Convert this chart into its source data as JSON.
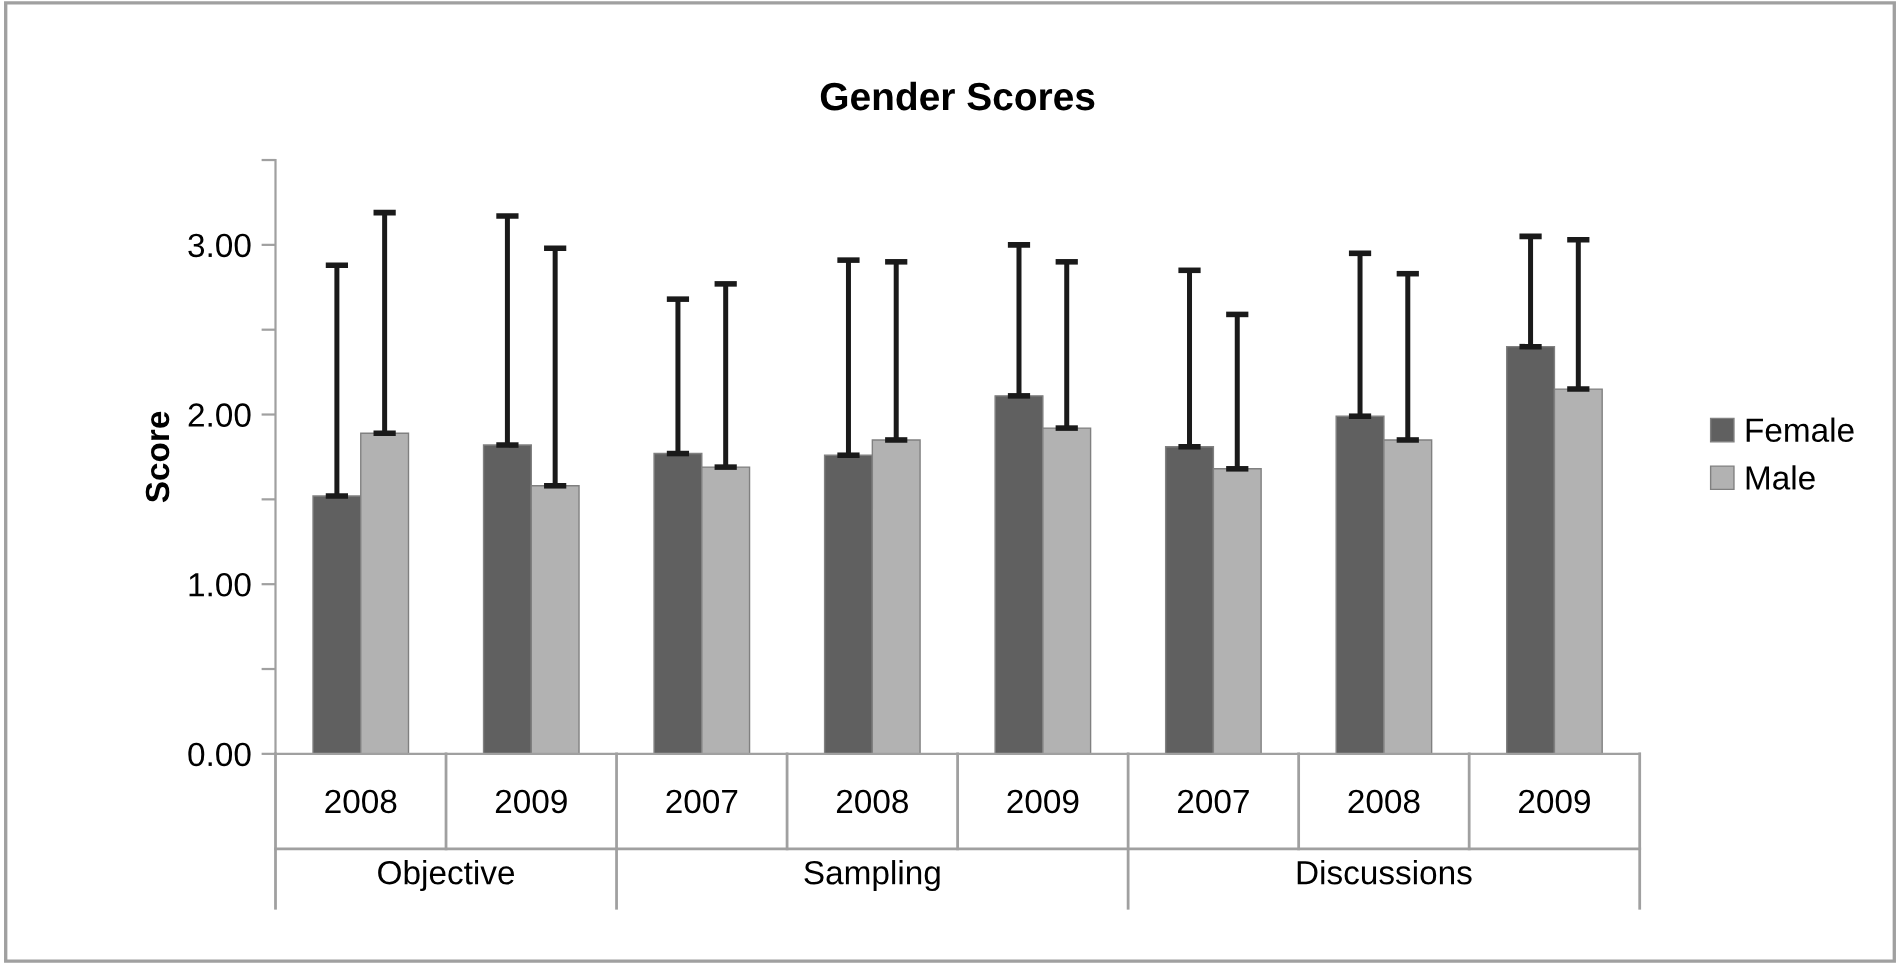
{
  "chart_data": {
    "type": "bar",
    "title": "Gender Scores",
    "ylabel": "Score",
    "categories": [
      "2008",
      "2009",
      "2007",
      "2008",
      "2009",
      "2007",
      "2008",
      "2009"
    ],
    "annotations": [
      "Objective",
      "Sampling",
      "Discussions"
    ],
    "series": [
      {
        "name": "Female",
        "color": "#606060",
        "values": [
          1.52,
          1.82,
          1.77,
          1.76,
          2.11,
          1.81,
          1.99,
          2.4
        ],
        "errors": [
          [
            1.52,
            2.88
          ],
          [
            1.82,
            3.17
          ],
          [
            1.77,
            2.68
          ],
          [
            1.76,
            2.91
          ],
          [
            2.11,
            3.0
          ],
          [
            1.81,
            2.85
          ],
          [
            1.99,
            2.95
          ],
          [
            2.4,
            3.05
          ]
        ]
      },
      {
        "name": "Male",
        "color": "#b2b2b2",
        "values": [
          1.89,
          1.58,
          1.69,
          1.85,
          1.92,
          1.68,
          1.85,
          2.15
        ],
        "errors": [
          [
            1.89,
            3.19
          ],
          [
            1.58,
            2.98
          ],
          [
            1.69,
            2.77
          ],
          [
            1.85,
            2.9
          ],
          [
            1.92,
            2.9
          ],
          [
            1.68,
            2.59
          ],
          [
            1.85,
            2.83
          ],
          [
            2.15,
            3.03
          ]
        ]
      }
    ],
    "ylim": [
      0,
      3.5
    ],
    "yticks": [
      {
        "value": 0,
        "label": "0.00"
      },
      {
        "value": 0.5,
        "label": null
      },
      {
        "value": 1,
        "label": "1.00"
      },
      {
        "value": 1.5,
        "label": null
      },
      {
        "value": 2,
        "label": "2.00"
      },
      {
        "value": 2.5,
        "label": null
      },
      {
        "value": 3,
        "label": "3.00"
      },
      {
        "value": 3.5,
        "label": null
      }
    ],
    "grid": false,
    "legend": "right"
  }
}
